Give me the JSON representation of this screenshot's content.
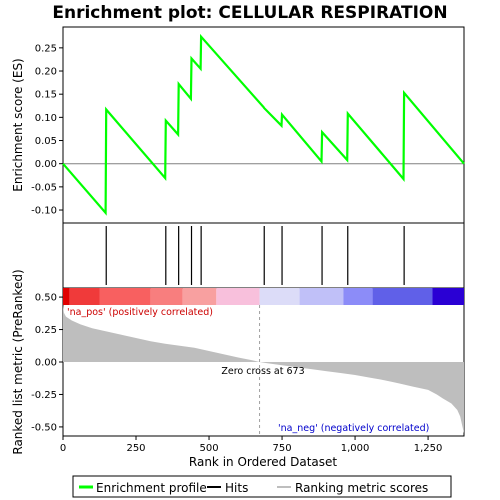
{
  "chart_data": {
    "type": "line",
    "title": "Enrichment plot: CELLULAR RESPIRATION",
    "enrichment_panel": {
      "ylabel": "Enrichment score (ES)",
      "ylim": [
        -0.128,
        0.295
      ],
      "yticks": [
        -0.1,
        -0.05,
        0.0,
        0.05,
        0.1,
        0.15,
        0.2,
        0.25
      ],
      "ytick_labels": [
        "-0.10",
        "-0.05",
        "0.00",
        "0.05",
        "0.10",
        "0.15",
        "0.20",
        "0.25"
      ],
      "series": [
        {
          "name": "Enrichment profile",
          "color": "#00ff00",
          "x": [
            0,
            146,
            148,
            350,
            352,
            394,
            396,
            438,
            440,
            471,
            473,
            687,
            689,
            748,
            750,
            885,
            887,
            973,
            975,
            1166,
            1168,
            1373
          ],
          "y": [
            0.0,
            -0.106,
            0.117,
            -0.031,
            0.093,
            0.063,
            0.172,
            0.14,
            0.227,
            0.205,
            0.274,
            0.122,
            0.12,
            0.082,
            0.106,
            0.005,
            0.068,
            0.008,
            0.108,
            -0.033,
            0.153,
            0.0
          ]
        }
      ]
    },
    "hits": {
      "name": "Hits",
      "positions": [
        148,
        352,
        396,
        440,
        473,
        689,
        750,
        887,
        975,
        1168
      ]
    },
    "ranking_panel": {
      "ylabel": "Ranked list metric (PreRanked)",
      "xlabel": "Rank in Ordered Dataset",
      "ylim": [
        -0.57,
        0.57
      ],
      "yticks": [
        -0.5,
        -0.25,
        0.0,
        0.25,
        0.5
      ],
      "ytick_labels": [
        "-0.50",
        "-0.25",
        "0.00",
        "0.25",
        "0.50"
      ],
      "xlim": [
        0,
        1373
      ],
      "xticks": [
        0,
        250,
        500,
        750,
        1000,
        1250
      ],
      "xtick_labels": [
        "0",
        "250",
        "500",
        "750",
        "1,000",
        "1,250"
      ],
      "series": {
        "name": "Ranking metric scores",
        "color": "#bebebe",
        "x": [
          0,
          3,
          10,
          30,
          60,
          100,
          150,
          200,
          250,
          300,
          350,
          400,
          450,
          500,
          550,
          600,
          650,
          673,
          700,
          750,
          800,
          850,
          900,
          950,
          1000,
          1050,
          1100,
          1150,
          1200,
          1250,
          1280,
          1300,
          1330,
          1350,
          1360,
          1368,
          1373
        ],
        "y": [
          0.44,
          0.38,
          0.35,
          0.32,
          0.29,
          0.26,
          0.235,
          0.21,
          0.185,
          0.16,
          0.14,
          0.125,
          0.11,
          0.085,
          0.06,
          0.035,
          0.012,
          0.0,
          -0.01,
          -0.025,
          -0.04,
          -0.055,
          -0.07,
          -0.085,
          -0.1,
          -0.12,
          -0.14,
          -0.165,
          -0.19,
          -0.215,
          -0.25,
          -0.28,
          -0.32,
          -0.37,
          -0.42,
          -0.5,
          -0.55
        ]
      },
      "zero_cross_label": "Zero cross at 673",
      "zero_cross": 673,
      "pos_label": "'na_pos' (positively correlated)",
      "neg_label": "'na_neg' (negatively correlated)",
      "pos_color": "#cc0000",
      "neg_color": "#0000cc"
    },
    "color_bar": [
      {
        "from": 0,
        "to": 22,
        "color": "#e00000"
      },
      {
        "from": 22,
        "to": 125,
        "color": "#f03a3a"
      },
      {
        "from": 125,
        "to": 300,
        "color": "#f86060"
      },
      {
        "from": 300,
        "to": 410,
        "color": "#f87e7e"
      },
      {
        "from": 410,
        "to": 525,
        "color": "#f8a0a0"
      },
      {
        "from": 525,
        "to": 673,
        "color": "#f8c0dc"
      },
      {
        "from": 673,
        "to": 810,
        "color": "#dcdcf8"
      },
      {
        "from": 810,
        "to": 960,
        "color": "#c0c0f8"
      },
      {
        "from": 960,
        "to": 1060,
        "color": "#8c8cf8"
      },
      {
        "from": 1060,
        "to": 1265,
        "color": "#6060e8"
      },
      {
        "from": 1265,
        "to": 1373,
        "color": "#2a00d4"
      }
    ],
    "legend": {
      "position": "bottom",
      "items": [
        {
          "label": "Enrichment profile",
          "color": "#00ff00"
        },
        {
          "label": "Hits",
          "color": "#000000"
        },
        {
          "label": "Ranking metric scores",
          "color": "#bebebe"
        }
      ]
    }
  }
}
